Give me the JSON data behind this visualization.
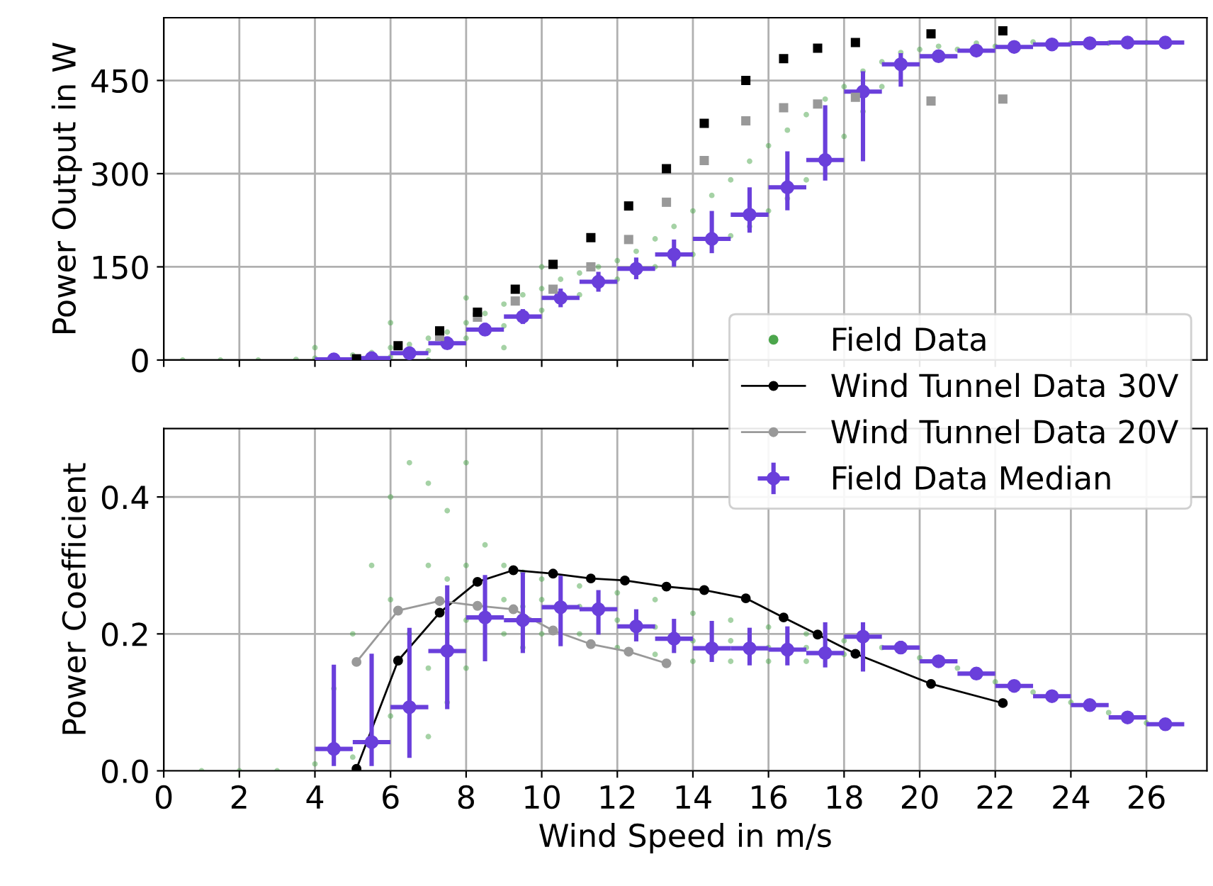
{
  "chart_data": [
    {
      "type": "scatter",
      "ylabel": "Power Output in W",
      "xlim": [
        0,
        27.6
      ],
      "ylim": [
        0,
        551
      ],
      "xticks": [
        0,
        2,
        4,
        6,
        8,
        10,
        12,
        14,
        16,
        18,
        20,
        22,
        24,
        26
      ],
      "yticks": [
        0,
        150,
        300,
        450
      ],
      "tick_labels": "y",
      "grid": true,
      "legend": false,
      "series": [
        {
          "color": "#4ca64c",
          "marker": "circle",
          "x": [
            0.5,
            1.5,
            2.5,
            3.5,
            4,
            5,
            5.5,
            6,
            6,
            6.5,
            7,
            7,
            7.5,
            8,
            8,
            8.5,
            9,
            9,
            9.5,
            10,
            10,
            10.5,
            11,
            11,
            11.5,
            12,
            12,
            12.5,
            13,
            13,
            13.5,
            13.5,
            14,
            14,
            14.5,
            15,
            15,
            15.5,
            15.5,
            16,
            16,
            16.5,
            16.5,
            17,
            17,
            17.5,
            18,
            18,
            18.5,
            18.5,
            19,
            19,
            19.5,
            20,
            20.5,
            21,
            21.5,
            22,
            23,
            24,
            25,
            26,
            4,
            6,
            8,
            10,
            7,
            9
          ],
          "values": [
            0,
            0,
            0,
            1,
            3,
            8,
            12,
            20,
            5,
            25,
            35,
            15,
            45,
            60,
            35,
            75,
            90,
            55,
            105,
            115,
            80,
            130,
            140,
            105,
            150,
            160,
            130,
            175,
            195,
            150,
            215,
            160,
            240,
            170,
            265,
            290,
            200,
            320,
            215,
            345,
            240,
            370,
            260,
            395,
            290,
            420,
            440,
            360,
            465,
            400,
            480,
            440,
            495,
            500,
            505,
            500,
            510,
            505,
            512,
            510,
            510,
            511,
            20,
            60,
            100,
            150,
            0,
            20
          ]
        },
        {
          "color": "#000000",
          "marker": "square",
          "x": [
            5.1,
            6.2,
            7.3,
            8.3,
            9.3,
            10.3,
            11.3,
            12.3,
            13.3,
            14.3,
            15.4,
            16.4,
            17.3,
            18.3,
            20.3,
            22.2
          ],
          "values": [
            2,
            23,
            47,
            77,
            114,
            154,
            197,
            248,
            308,
            381,
            450,
            485,
            502,
            511,
            525,
            530
          ]
        },
        {
          "color": "#999999",
          "marker": "square",
          "x": [
            7.3,
            8.3,
            9.3,
            10.3,
            11.3,
            12.3,
            13.3,
            14.3,
            15.4,
            16.4,
            17.3,
            18.3,
            20.3,
            22.2
          ],
          "values": [
            38,
            69,
            95,
            114,
            150,
            194,
            254,
            321,
            385,
            406,
            412,
            423,
            417,
            420
          ]
        },
        {
          "color": "#6a3fdb",
          "marker": "circle",
          "x": [
            4.5,
            5.5,
            6.5,
            7.5,
            8.5,
            9.5,
            10.5,
            11.5,
            12.5,
            13.5,
            14.5,
            15.5,
            16.5,
            17.5,
            18.5,
            19.5,
            20.5,
            21.5,
            22.5,
            23.5,
            24.5,
            25.5,
            26.5
          ],
          "values": [
            1,
            3,
            11,
            27,
            49,
            70,
            100,
            126,
            147,
            170,
            195,
            234,
            278,
            322,
            432,
            476,
            489,
            498,
            504,
            508,
            510,
            511,
            511
          ],
          "xerrors": [
            0.5,
            0.5,
            0.5,
            0.5,
            0.5,
            0.5,
            0.5,
            0.5,
            0.5,
            0.5,
            0.5,
            0.5,
            0.5,
            0.5,
            0.5,
            0.5,
            0.5,
            0.5,
            0.5,
            0.5,
            0.5,
            0.5,
            0.5
          ],
          "errors": [
            null,
            null,
            null,
            [
              18,
              38
            ],
            [
              40,
              60
            ],
            [
              58,
              82
            ],
            [
              85,
              115
            ],
            [
              110,
              142
            ],
            [
              130,
              165
            ],
            [
              150,
              194
            ],
            [
              172,
              240
            ],
            [
              205,
              278
            ],
            [
              241,
              336
            ],
            [
              289,
              410
            ],
            [
              320,
              465
            ],
            [
              440,
              494
            ],
            null,
            null,
            null,
            null,
            null,
            null,
            null
          ]
        }
      ]
    },
    {
      "type": "line",
      "xlabel": "Wind Speed in m/s",
      "ylabel": "Power Coefficient",
      "xlim": [
        0,
        27.6
      ],
      "ylim": [
        0,
        0.5
      ],
      "xticks": [
        0,
        2,
        4,
        6,
        8,
        10,
        12,
        14,
        16,
        18,
        20,
        22,
        24,
        26
      ],
      "yticks": [
        {
          "value": 0,
          "label": "0.0"
        },
        0.2,
        0.4
      ],
      "grid": true,
      "legend": "top right",
      "series": [
        {
          "type": "scatter",
          "name": "Field Data",
          "color": "#4ca64c",
          "marker": "circle",
          "x": [
            1,
            2,
            3,
            4,
            4.5,
            5,
            5,
            5.5,
            6,
            6,
            6,
            6.5,
            6.5,
            7,
            7,
            7,
            7,
            7.5,
            7.5,
            7.5,
            7.5,
            8,
            8,
            8,
            8,
            8.5,
            9,
            9,
            9,
            9.5,
            9.5,
            9.5,
            10,
            10,
            10,
            11,
            11,
            11,
            12,
            12,
            12,
            13,
            13,
            13,
            14,
            14,
            14,
            15,
            15,
            15,
            16,
            16,
            16,
            17,
            17,
            17,
            18,
            18,
            19,
            20,
            21,
            22,
            23,
            24,
            25,
            26
          ],
          "values": [
            0,
            0,
            0,
            0.01,
            0.12,
            0.02,
            0.2,
            0.3,
            0.08,
            0.25,
            0.4,
            0.2,
            0.45,
            0.05,
            0.15,
            0.3,
            0.42,
            0.1,
            0.2,
            0.28,
            0.38,
            0.15,
            0.22,
            0.3,
            0.45,
            0.33,
            0.2,
            0.25,
            0.3,
            0.18,
            0.24,
            0.29,
            0.2,
            0.25,
            0.28,
            0.2,
            0.24,
            0.27,
            0.18,
            0.22,
            0.26,
            0.17,
            0.21,
            0.25,
            0.16,
            0.19,
            0.23,
            0.16,
            0.19,
            0.22,
            0.16,
            0.18,
            0.21,
            0.16,
            0.18,
            0.2,
            0.17,
            0.19,
            0.18,
            0.165,
            0.15,
            0.13,
            0.115,
            0.1,
            0.085,
            0.07
          ]
        },
        {
          "name": "Wind Tunnel Data 30V",
          "color": "#000000",
          "marker": "circle",
          "line_style": "solid",
          "x": [
            5.1,
            6.2,
            7.3,
            8.3,
            9.25,
            10.3,
            11.3,
            12.2,
            13.3,
            14.3,
            15.4,
            16.4,
            17.3,
            18.3,
            20.3,
            22.2
          ],
          "values": [
            0.003,
            0.161,
            0.231,
            0.276,
            0.293,
            0.288,
            0.281,
            0.278,
            0.269,
            0.264,
            0.252,
            0.224,
            0.199,
            0.171,
            0.127,
            0.099
          ]
        },
        {
          "name": "Wind Tunnel Data 20V",
          "color": "#999999",
          "marker": "circle",
          "line_style": "solid",
          "x": [
            5.1,
            6.2,
            7.3,
            8.3,
            9.25,
            10.3,
            11.3,
            12.3,
            13.3
          ],
          "values": [
            0.159,
            0.234,
            0.248,
            0.241,
            0.236,
            0.205,
            0.185,
            0.174,
            0.157
          ]
        },
        {
          "type": "scatter",
          "name": "Field Data Median",
          "color": "#6a3fdb",
          "marker": "circle",
          "x": [
            4.5,
            5.5,
            6.5,
            7.5,
            8.5,
            9.5,
            10.5,
            11.5,
            12.5,
            13.5,
            14.5,
            15.5,
            16.5,
            17.5,
            18.5,
            19.5,
            20.5,
            21.5,
            22.5,
            23.5,
            24.5,
            25.5,
            26.5
          ],
          "values": [
            0.032,
            0.042,
            0.093,
            0.175,
            0.224,
            0.22,
            0.239,
            0.236,
            0.211,
            0.193,
            0.179,
            0.179,
            0.177,
            0.172,
            0.196,
            0.18,
            0.16,
            0.142,
            0.124,
            0.109,
            0.096,
            0.078,
            0.068
          ],
          "xerrors": [
            0.5,
            0.5,
            0.5,
            0.5,
            0.5,
            0.5,
            0.5,
            0.5,
            0.5,
            0.5,
            0.5,
            0.5,
            0.5,
            0.5,
            0.5,
            0.5,
            0.5,
            0.5,
            0.5,
            0.5,
            0.5,
            0.5,
            0.5
          ],
          "errors": [
            [
              0.007,
              0.155
            ],
            [
              0.007,
              0.171
            ],
            [
              0.019,
              0.209
            ],
            [
              0.09,
              0.271
            ],
            [
              0.16,
              0.286
            ],
            [
              0.172,
              0.29
            ],
            [
              0.182,
              0.285
            ],
            [
              0.199,
              0.264
            ],
            [
              0.189,
              0.236
            ],
            [
              0.172,
              0.222
            ],
            [
              0.159,
              0.219
            ],
            [
              0.154,
              0.209
            ],
            [
              0.154,
              0.211
            ],
            [
              0.151,
              0.217
            ],
            [
              0.145,
              0.217
            ],
            [
              0.172,
              0.19
            ],
            null,
            null,
            null,
            null,
            null,
            null,
            null
          ]
        }
      ]
    }
  ]
}
